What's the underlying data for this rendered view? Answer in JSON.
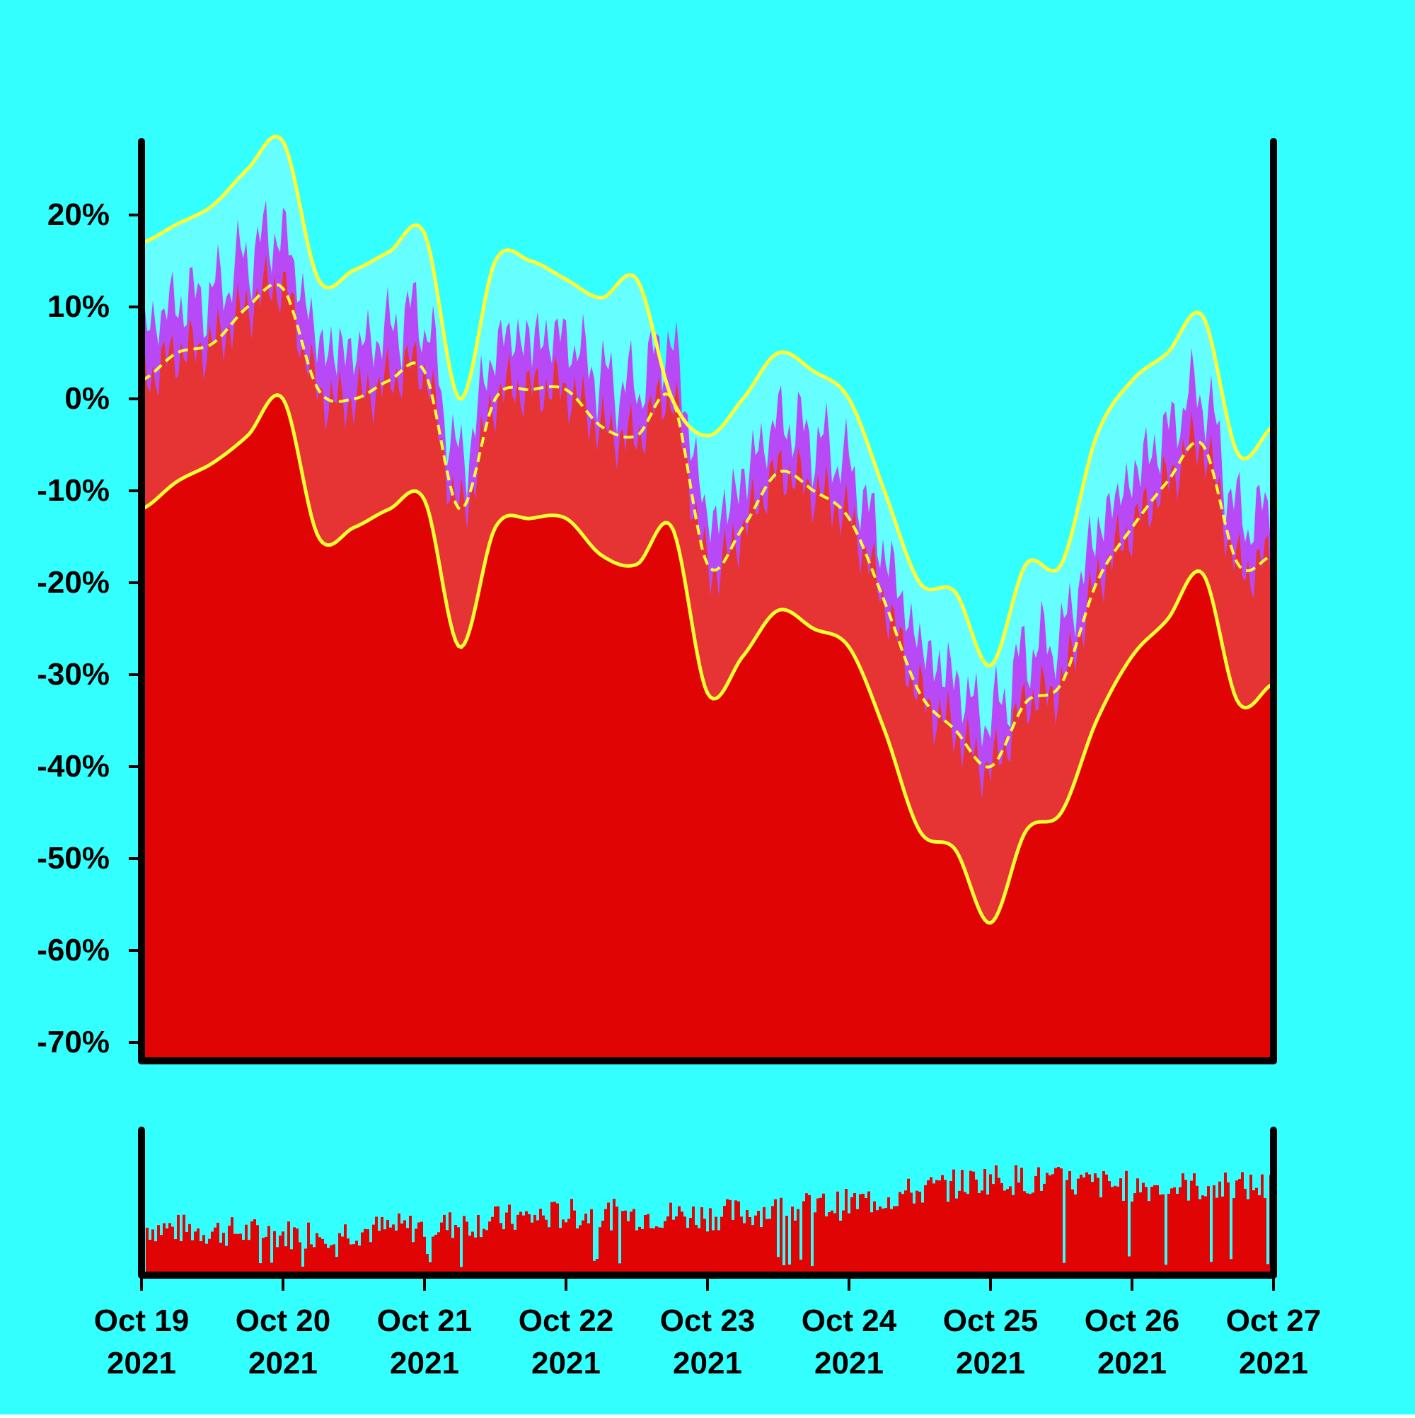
{
  "chart_data": [
    {
      "type": "area",
      "title": "",
      "xlabel": "",
      "ylabel": "",
      "ylim": [
        -72,
        28
      ],
      "y_ticks": [
        {
          "value": 20,
          "label": "20%"
        },
        {
          "value": 10,
          "label": "10%"
        },
        {
          "value": 0,
          "label": "0%"
        },
        {
          "value": -10,
          "label": "-10%"
        },
        {
          "value": -20,
          "label": "-20%"
        },
        {
          "value": -30,
          "label": "-30%"
        },
        {
          "value": -40,
          "label": "-40%"
        },
        {
          "value": -50,
          "label": "-50%"
        },
        {
          "value": -60,
          "label": "-60%"
        },
        {
          "value": -70,
          "label": "-70%"
        }
      ],
      "x_ticks": [
        {
          "value": "2021-10-19",
          "line1": "Oct 19",
          "line2": "2021"
        },
        {
          "value": "2021-10-20",
          "line1": "Oct 20",
          "line2": "2021"
        },
        {
          "value": "2021-10-21",
          "line1": "Oct 21",
          "line2": "2021"
        },
        {
          "value": "2021-10-22",
          "line1": "Oct 22",
          "line2": "2021"
        },
        {
          "value": "2021-10-23",
          "line1": "Oct 23",
          "line2": "2021"
        },
        {
          "value": "2021-10-24",
          "line1": "Oct 24",
          "line2": "2021"
        },
        {
          "value": "2021-10-25",
          "line1": "Oct 25",
          "line2": "2021"
        },
        {
          "value": "2021-10-26",
          "line1": "Oct 26",
          "line2": "2021"
        },
        {
          "value": "2021-10-27",
          "line1": "Oct 27",
          "line2": "2021"
        }
      ],
      "x": [
        "2021-10-19T00:00",
        "2021-10-19T06:00",
        "2021-10-19T12:00",
        "2021-10-19T18:00",
        "2021-10-20T00:00",
        "2021-10-20T06:00",
        "2021-10-20T12:00",
        "2021-10-20T18:00",
        "2021-10-21T00:00",
        "2021-10-21T06:00",
        "2021-10-21T12:00",
        "2021-10-21T18:00",
        "2021-10-22T00:00",
        "2021-10-22T06:00",
        "2021-10-22T12:00",
        "2021-10-22T18:00",
        "2021-10-23T00:00",
        "2021-10-23T06:00",
        "2021-10-23T12:00",
        "2021-10-23T18:00",
        "2021-10-24T00:00",
        "2021-10-24T06:00",
        "2021-10-24T12:00",
        "2021-10-24T18:00",
        "2021-10-25T00:00",
        "2021-10-25T06:00",
        "2021-10-25T12:00",
        "2021-10-25T18:00",
        "2021-10-26T00:00",
        "2021-10-26T06:00",
        "2021-10-26T12:00",
        "2021-10-26T18:00",
        "2021-10-27T00:00"
      ],
      "series": [
        {
          "values": [
            2,
            5,
            6,
            10,
            12,
            1,
            0,
            2,
            3,
            -12,
            0,
            1,
            1,
            -3,
            -4,
            0,
            -18,
            -14,
            -8,
            -10,
            -13,
            -22,
            -32,
            -36,
            -40,
            -33,
            -31,
            -20,
            -14,
            -9,
            -5,
            -18,
            -17
          ]
        },
        {
          "values": [
            17,
            19,
            21,
            25,
            28,
            13,
            14,
            16,
            18,
            0,
            15,
            15,
            13,
            11,
            13,
            0,
            -4,
            0,
            5,
            3,
            0,
            -10,
            -20,
            -21,
            -29,
            -18,
            -18,
            -4,
            2,
            5,
            9,
            -6,
            -3
          ]
        },
        {
          "values": [
            -12,
            -9,
            -7,
            -4,
            0,
            -15,
            -14,
            -12,
            -11,
            -27,
            -14,
            -13,
            -13,
            -17,
            -18,
            -14,
            -32,
            -28,
            -23,
            -25,
            -27,
            -36,
            -47,
            -49,
            -57,
            -47,
            -45,
            -35,
            -28,
            -24,
            -19,
            -33,
            -31
          ]
        }
      ],
      "colors": {
        "background": "#33FFFF",
        "area_dark": "#E00404",
        "area_light": "#E63434",
        "area_purple": "#B74AF6",
        "band_fill": "#66FFFF",
        "band_lines": "#FFFF33",
        "axis": "#000000"
      }
    },
    {
      "type": "bar",
      "title": "",
      "colors": {
        "bars": "#E00404"
      },
      "daily_levels": [
        0.32,
        0.27,
        0.32,
        0.41,
        0.4,
        0.48,
        0.66,
        0.6,
        0.6
      ]
    }
  ]
}
